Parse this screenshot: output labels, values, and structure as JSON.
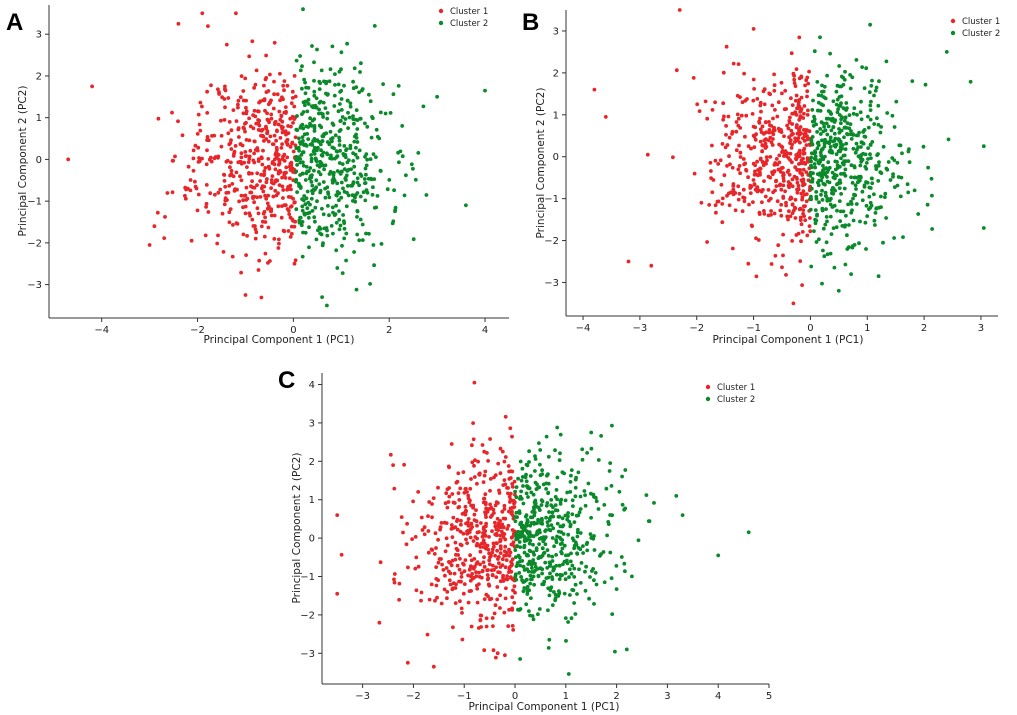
{
  "chart_data": [
    {
      "panel": "A",
      "type": "scatter",
      "title": "",
      "xlabel": "Principal Component 1 (PC1)",
      "ylabel": "Principal Component 2 (PC2)",
      "xlim": [
        -5.1,
        4.5
      ],
      "ylim": [
        -3.8,
        3.7
      ],
      "xticks": [
        -4,
        -2,
        0,
        2,
        4
      ],
      "yticks": [
        -3,
        -2,
        -1,
        0,
        1,
        2,
        3
      ],
      "xtick_labels": [
        "−4",
        "−2",
        "0",
        "2",
        "4"
      ],
      "ytick_labels": [
        "−3",
        "−2",
        "−1",
        "0",
        "1",
        "2",
        "3"
      ],
      "grid": false,
      "legend_position": "top-right",
      "series": [
        {
          "name": "Cluster 1",
          "color": "#e8262a",
          "n_points": 500,
          "x_range": [
            -4.7,
            0.05
          ],
          "sx": 1.0,
          "sy": 1.1,
          "seed": 11,
          "extra_points": [
            [
              -4.7,
              0.0
            ],
            [
              -4.2,
              1.75
            ],
            [
              -2.4,
              3.25
            ],
            [
              -1.9,
              3.5
            ],
            [
              -1.2,
              3.5
            ],
            [
              -1.0,
              -3.25
            ],
            [
              -2.9,
              -1.6
            ],
            [
              -3.0,
              -2.05
            ]
          ]
        },
        {
          "name": "Cluster 2",
          "color": "#0a8a2a",
          "n_points": 500,
          "x_range": [
            0.05,
            4.1
          ],
          "sx": 1.0,
          "sy": 1.1,
          "seed": 22,
          "extra_points": [
            [
              0.2,
              3.6
            ],
            [
              4.0,
              1.65
            ],
            [
              3.6,
              -1.1
            ],
            [
              0.7,
              -3.5
            ],
            [
              0.6,
              -3.3
            ],
            [
              1.7,
              3.2
            ],
            [
              3.0,
              1.5
            ]
          ]
        }
      ]
    },
    {
      "panel": "B",
      "type": "scatter",
      "title": "",
      "xlabel": "Principal Component 1 (PC1)",
      "ylabel": "Principal Component 2 (PC2)",
      "xlim": [
        -4.3,
        3.3
      ],
      "ylim": [
        -3.8,
        3.5
      ],
      "xticks": [
        -4,
        -3,
        -2,
        -1,
        0,
        1,
        2,
        3
      ],
      "yticks": [
        -3,
        -2,
        -1,
        0,
        1,
        2,
        3
      ],
      "xtick_labels": [
        "−4",
        "−3",
        "−2",
        "−1",
        "0",
        "1",
        "2",
        "3"
      ],
      "ytick_labels": [
        "−3",
        "−2",
        "−1",
        "0",
        "1",
        "2",
        "3"
      ],
      "grid": false,
      "legend_position": "top-right",
      "series": [
        {
          "name": "Cluster 1",
          "color": "#e8262a",
          "n_points": 500,
          "x_range": [
            -3.8,
            0.0
          ],
          "sx": 0.8,
          "sy": 1.05,
          "seed": 33,
          "extra_points": [
            [
              -3.8,
              1.6
            ],
            [
              -3.6,
              0.95
            ],
            [
              -2.3,
              3.5
            ],
            [
              -1.0,
              3.05
            ],
            [
              -0.3,
              -3.5
            ],
            [
              -3.2,
              -2.5
            ],
            [
              -2.8,
              -2.6
            ]
          ]
        },
        {
          "name": "Cluster 2",
          "color": "#0a8a2a",
          "n_points": 500,
          "x_range": [
            0.0,
            3.05
          ],
          "sx": 0.8,
          "sy": 1.05,
          "seed": 44,
          "extra_points": [
            [
              1.05,
              3.15
            ],
            [
              3.05,
              0.25
            ],
            [
              3.05,
              -1.7
            ],
            [
              0.5,
              -3.2
            ],
            [
              1.2,
              -2.85
            ],
            [
              2.4,
              2.5
            ]
          ]
        }
      ]
    },
    {
      "panel": "C",
      "type": "scatter",
      "title": "",
      "xlabel": "Principal Component 1 (PC1)",
      "ylabel": "Principal Component 2 (PC2)",
      "xlim": [
        -3.8,
        5.0
      ],
      "ylim": [
        -3.8,
        4.3
      ],
      "xticks": [
        -3,
        -2,
        -1,
        0,
        1,
        2,
        3,
        4,
        5
      ],
      "yticks": [
        -3,
        -2,
        -1,
        0,
        1,
        2,
        3,
        4
      ],
      "xtick_labels": [
        "−3",
        "−2",
        "−1",
        "0",
        "1",
        "2",
        "3",
        "4",
        "5"
      ],
      "ytick_labels": [
        "−3",
        "−2",
        "−1",
        "0",
        "1",
        "2",
        "3",
        "4"
      ],
      "grid": false,
      "legend_position": "top-right",
      "series": [
        {
          "name": "Cluster 1",
          "color": "#e8262a",
          "n_points": 500,
          "x_range": [
            -3.6,
            0.0
          ],
          "sx": 0.9,
          "sy": 1.1,
          "seed": 55,
          "extra_points": [
            [
              -0.8,
              4.05
            ],
            [
              -3.5,
              0.6
            ],
            [
              -3.5,
              -1.45
            ],
            [
              -1.6,
              -3.35
            ],
            [
              -0.2,
              -3.05
            ],
            [
              -2.4,
              1.9
            ]
          ]
        },
        {
          "name": "Cluster 2",
          "color": "#0a8a2a",
          "n_points": 500,
          "x_range": [
            0.0,
            4.7
          ],
          "sx": 0.9,
          "sy": 1.1,
          "seed": 66,
          "extra_points": [
            [
              4.6,
              0.15
            ],
            [
              4.0,
              -0.45
            ],
            [
              0.1,
              -3.15
            ],
            [
              2.2,
              -2.9
            ],
            [
              1.5,
              2.75
            ],
            [
              3.3,
              0.6
            ]
          ]
        }
      ]
    }
  ]
}
